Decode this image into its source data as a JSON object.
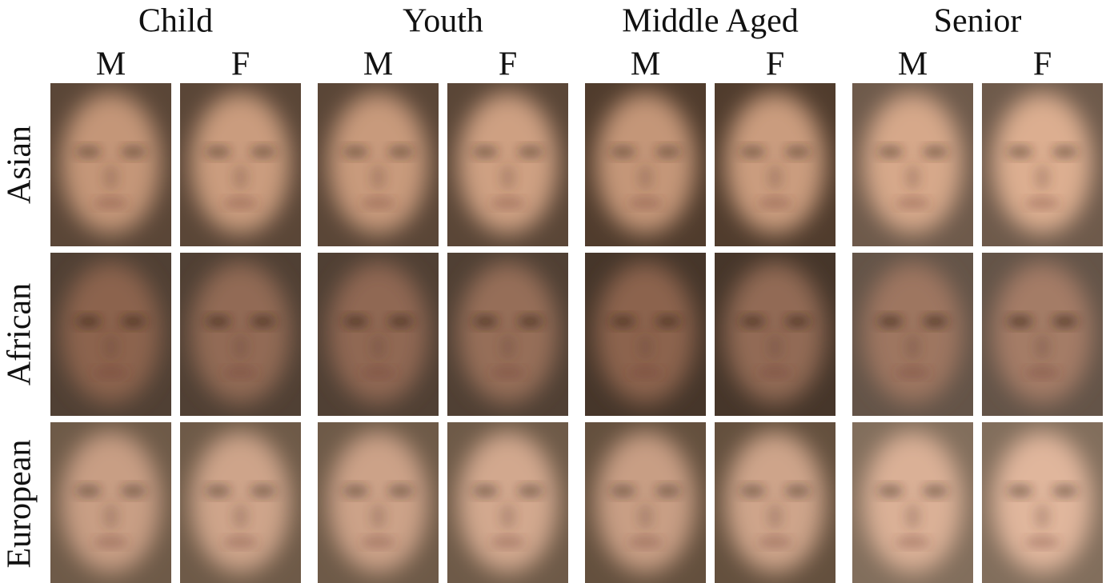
{
  "age_groups": [
    "Child",
    "Youth",
    "Middle Aged",
    "Senior"
  ],
  "genders": [
    "M",
    "F"
  ],
  "ethnicities": [
    "Asian",
    "African",
    "European"
  ]
}
